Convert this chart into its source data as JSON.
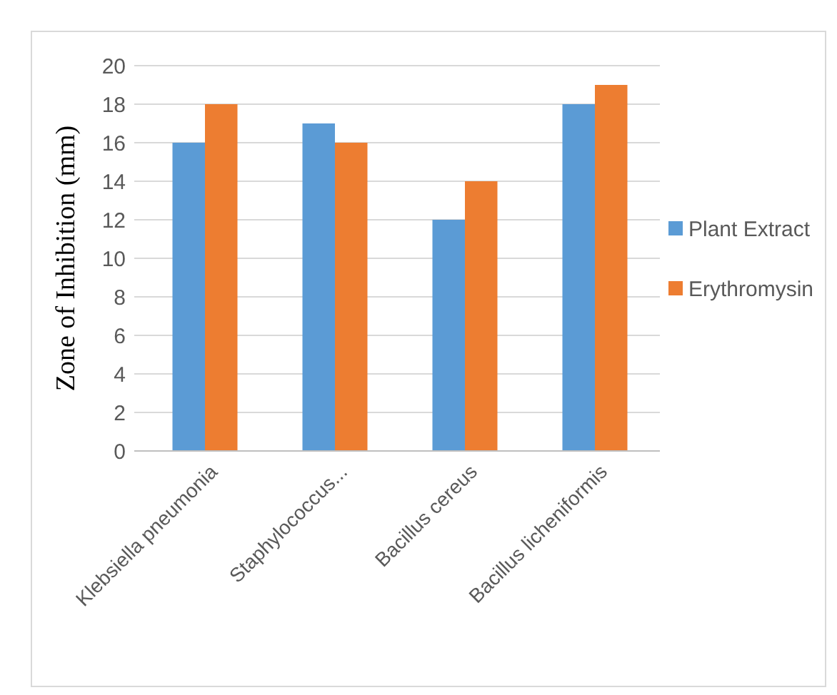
{
  "chart_data": {
    "type": "bar",
    "ylabel": "Zone of Inhibition (mm)",
    "categories": [
      "Klebsiella pneumonia",
      "Staphylococcus...",
      "Bacillus cereus",
      "Bacillus licheniformis"
    ],
    "series": [
      {
        "name": "Plant Extract",
        "color": "#5b9bd5",
        "values": [
          16,
          17,
          12,
          18
        ]
      },
      {
        "name": "Erythromysin",
        "color": "#ed7d31",
        "values": [
          18,
          16,
          14,
          19
        ]
      }
    ],
    "ylim": [
      0,
      20
    ],
    "yticks": [
      0,
      2,
      4,
      6,
      8,
      10,
      12,
      14,
      16,
      18,
      20
    ],
    "grid": "y",
    "legend": "right"
  }
}
